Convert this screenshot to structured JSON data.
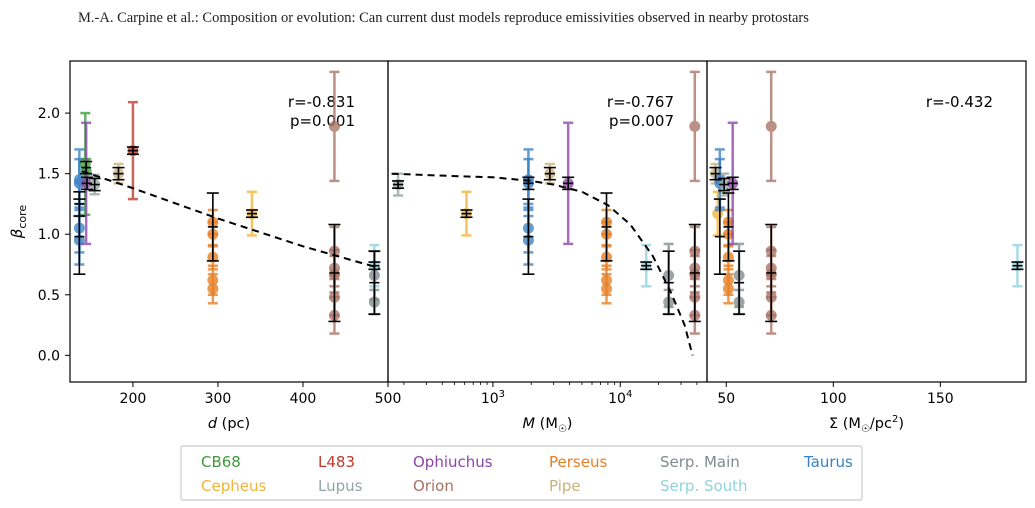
{
  "header": {
    "text": "M.-A. Carpine et al.: Composition or evolution: Can current dust models reproduce emissivities observed in nearby protostars"
  },
  "chart_data": {
    "type": "scatter",
    "ylabel": "β",
    "ylabel_sub": "core",
    "ylim": [
      -0.22,
      2.43
    ],
    "yticks": [
      0.0,
      0.5,
      1.0,
      1.5,
      2.0
    ],
    "legend": {
      "placement": "bottom-center",
      "entries": [
        {
          "name": "CB68",
          "color": "#3a9b3a"
        },
        {
          "name": "L483",
          "color": "#c0392b"
        },
        {
          "name": "Ophiuchus",
          "color": "#8e44ad"
        },
        {
          "name": "Perseus",
          "color": "#e67e22"
        },
        {
          "name": "Serp. Main",
          "color": "#7f8c8d"
        },
        {
          "name": "Taurus",
          "color": "#3b82c4"
        },
        {
          "name": "Cepheus",
          "color": "#f1b434"
        },
        {
          "name": "Lupus",
          "color": "#95a5a6"
        },
        {
          "name": "Orion",
          "color": "#a97164"
        },
        {
          "name": "Pipe",
          "color": "#c8b27a"
        },
        {
          "name": "Serp. South",
          "color": "#8fd3dd"
        }
      ]
    },
    "panels": [
      {
        "id": "distance",
        "xlabel_main": "d",
        "xlabel_unit": " (pc)",
        "xscale": "linear",
        "xlim": [
          126,
          500
        ],
        "xticks": [
          {
            "v": 200,
            "label": "200"
          },
          {
            "v": 300,
            "label": "300"
          },
          {
            "v": 400,
            "label": "400"
          },
          {
            "v": 500,
            "label": "500"
          }
        ],
        "r_label": "r=-0.831",
        "p_label": "p=0.001",
        "fit_curve": [
          [
            140,
            1.52
          ],
          [
            200,
            1.38
          ],
          [
            300,
            1.13
          ],
          [
            400,
            0.9
          ],
          [
            490,
            0.72
          ]
        ],
        "points": [
          {
            "x": 137,
            "y": 1.45,
            "lo": 0.25,
            "hi": 0.25,
            "color": "#3b82c4"
          },
          {
            "x": 137,
            "y": 1.42,
            "lo": 0.2,
            "hi": 0.2,
            "color": "#3b82c4"
          },
          {
            "x": 137,
            "y": 1.05,
            "lo": 0.2,
            "hi": 0.2,
            "color": "#3b82c4"
          },
          {
            "x": 137,
            "y": 0.95,
            "lo": 0.2,
            "hi": 0.2,
            "color": "#3b82c4"
          },
          {
            "x": 144,
            "y": 1.58,
            "lo": 0.42,
            "hi": 0.42,
            "color": "#3a9b3a"
          },
          {
            "x": 145,
            "y": 1.52,
            "lo": 0.1,
            "hi": 0.1,
            "color": "#3a9b3a"
          },
          {
            "x": 145,
            "y": 1.42,
            "lo": 0.5,
            "hi": 0.5,
            "color": "#8e44ad"
          },
          {
            "x": 155,
            "y": 1.41,
            "lo": 0.08,
            "hi": 0.08,
            "color": "#95a5a6"
          },
          {
            "x": 183,
            "y": 1.5,
            "lo": 0.08,
            "hi": 0.08,
            "color": "#c8b27a"
          },
          {
            "x": 200,
            "y": 1.69,
            "lo": 0.4,
            "hi": 0.4,
            "color": "#c0392b"
          },
          {
            "x": 294,
            "y": 1.1,
            "lo": 0.1,
            "hi": 0.1,
            "color": "#e67e22"
          },
          {
            "x": 294,
            "y": 1.0,
            "lo": 0.1,
            "hi": 0.1,
            "color": "#e67e22"
          },
          {
            "x": 294,
            "y": 0.81,
            "lo": 0.1,
            "hi": 0.1,
            "color": "#e67e22"
          },
          {
            "x": 294,
            "y": 0.62,
            "lo": 0.12,
            "hi": 0.12,
            "color": "#e67e22"
          },
          {
            "x": 294,
            "y": 0.55,
            "lo": 0.12,
            "hi": 0.12,
            "color": "#e67e22"
          },
          {
            "x": 340,
            "y": 1.17,
            "lo": 0.18,
            "hi": 0.18,
            "color": "#f1b434"
          },
          {
            "x": 437,
            "y": 1.89,
            "lo": 0.45,
            "hi": 0.45,
            "color": "#a97164"
          },
          {
            "x": 437,
            "y": 0.86,
            "lo": 0.2,
            "hi": 0.2,
            "color": "#a97164"
          },
          {
            "x": 437,
            "y": 0.72,
            "lo": 0.15,
            "hi": 0.15,
            "color": "#a97164"
          },
          {
            "x": 437,
            "y": 0.67,
            "lo": 0.15,
            "hi": 0.15,
            "color": "#a97164"
          },
          {
            "x": 437,
            "y": 0.48,
            "lo": 0.15,
            "hi": 0.15,
            "color": "#a97164"
          },
          {
            "x": 437,
            "y": 0.33,
            "lo": 0.15,
            "hi": 0.15,
            "color": "#a97164"
          },
          {
            "x": 484,
            "y": 0.74,
            "lo": 0.17,
            "hi": 0.17,
            "color": "#8fd3dd"
          },
          {
            "x": 484,
            "y": 0.66,
            "lo": 0.2,
            "hi": 0.2,
            "color": "#7f8c8d"
          },
          {
            "x": 484,
            "y": 0.44,
            "lo": 0.1,
            "hi": 0.1,
            "color": "#7f8c8d"
          }
        ],
        "means": [
          {
            "x": 137,
            "y": 0.98,
            "lo": 0.31,
            "hi": 0.31
          },
          {
            "x": 137,
            "y": 1.25,
            "lo": 0.1,
            "hi": 0.1
          },
          {
            "x": 145,
            "y": 1.55,
            "lo": 0.05,
            "hi": 0.05
          },
          {
            "x": 146,
            "y": 1.42,
            "lo": 0.05,
            "hi": 0.05
          },
          {
            "x": 155,
            "y": 1.41,
            "lo": 0.05,
            "hi": 0.05
          },
          {
            "x": 183,
            "y": 1.5,
            "lo": 0.05,
            "hi": 0.05
          },
          {
            "x": 200,
            "y": 1.69,
            "lo": 0.03,
            "hi": 0.03
          },
          {
            "x": 294,
            "y": 1.06,
            "lo": 0.28,
            "hi": 0.28
          },
          {
            "x": 340,
            "y": 1.17,
            "lo": 0.03,
            "hi": 0.03
          },
          {
            "x": 437,
            "y": 0.68,
            "lo": 0.4,
            "hi": 0.4
          },
          {
            "x": 484,
            "y": 0.74,
            "lo": 0.03,
            "hi": 0.03
          },
          {
            "x": 484,
            "y": 0.6,
            "lo": 0.26,
            "hi": 0.26
          }
        ]
      },
      {
        "id": "mass",
        "xlabel_main": "M",
        "xlabel_unit": " (M",
        "xlabel_tail": ")",
        "xscale": "log",
        "xlim": [
          150,
          48000
        ],
        "xticks": [
          {
            "v": 1000,
            "label": "10",
            "sup": "3"
          },
          {
            "v": 10000,
            "label": "10",
            "sup": "4"
          }
        ],
        "minor_ticks": [
          200,
          300,
          400,
          500,
          600,
          700,
          800,
          900,
          2000,
          3000,
          4000,
          5000,
          6000,
          7000,
          8000,
          9000,
          20000,
          30000,
          40000
        ],
        "r_label": "r=-0.767",
        "p_label": "p=0.007",
        "fit_curve": [
          [
            160,
            1.5
          ],
          [
            500,
            1.48
          ],
          [
            1000,
            1.47
          ],
          [
            2000,
            1.44
          ],
          [
            3000,
            1.41
          ],
          [
            5000,
            1.35
          ],
          [
            8000,
            1.24
          ],
          [
            12000,
            1.08
          ],
          [
            18000,
            0.82
          ],
          [
            25000,
            0.52
          ],
          [
            32000,
            0.25
          ],
          [
            37000,
            0.0
          ]
        ],
        "points": [
          {
            "x": 180,
            "y": 1.41,
            "lo": 0.09,
            "hi": 0.09,
            "color": "#95a5a6"
          },
          {
            "x": 620,
            "y": 1.17,
            "lo": 0.18,
            "hi": 0.18,
            "color": "#f1b434"
          },
          {
            "x": 1900,
            "y": 1.45,
            "lo": 0.25,
            "hi": 0.25,
            "color": "#3b82c4"
          },
          {
            "x": 1900,
            "y": 1.42,
            "lo": 0.2,
            "hi": 0.2,
            "color": "#3b82c4"
          },
          {
            "x": 1900,
            "y": 1.05,
            "lo": 0.2,
            "hi": 0.2,
            "color": "#3b82c4"
          },
          {
            "x": 1900,
            "y": 0.95,
            "lo": 0.2,
            "hi": 0.2,
            "color": "#3b82c4"
          },
          {
            "x": 2800,
            "y": 1.5,
            "lo": 0.08,
            "hi": 0.08,
            "color": "#c8b27a"
          },
          {
            "x": 3900,
            "y": 1.42,
            "lo": 0.5,
            "hi": 0.5,
            "color": "#8e44ad"
          },
          {
            "x": 7800,
            "y": 1.1,
            "lo": 0.1,
            "hi": 0.1,
            "color": "#e67e22"
          },
          {
            "x": 7800,
            "y": 1.0,
            "lo": 0.1,
            "hi": 0.1,
            "color": "#e67e22"
          },
          {
            "x": 7800,
            "y": 0.81,
            "lo": 0.1,
            "hi": 0.1,
            "color": "#e67e22"
          },
          {
            "x": 7800,
            "y": 0.62,
            "lo": 0.12,
            "hi": 0.12,
            "color": "#e67e22"
          },
          {
            "x": 7800,
            "y": 0.55,
            "lo": 0.12,
            "hi": 0.12,
            "color": "#e67e22"
          },
          {
            "x": 16000,
            "y": 0.74,
            "lo": 0.17,
            "hi": 0.17,
            "color": "#8fd3dd"
          },
          {
            "x": 24000,
            "y": 0.66,
            "lo": 0.26,
            "hi": 0.26,
            "color": "#7f8c8d"
          },
          {
            "x": 24000,
            "y": 0.44,
            "lo": 0.1,
            "hi": 0.1,
            "color": "#7f8c8d"
          },
          {
            "x": 38500,
            "y": 1.89,
            "lo": 0.45,
            "hi": 0.45,
            "color": "#a97164"
          },
          {
            "x": 38500,
            "y": 0.86,
            "lo": 0.2,
            "hi": 0.2,
            "color": "#a97164"
          },
          {
            "x": 38500,
            "y": 0.72,
            "lo": 0.15,
            "hi": 0.15,
            "color": "#a97164"
          },
          {
            "x": 38500,
            "y": 0.67,
            "lo": 0.15,
            "hi": 0.15,
            "color": "#a97164"
          },
          {
            "x": 38500,
            "y": 0.48,
            "lo": 0.15,
            "hi": 0.15,
            "color": "#a97164"
          },
          {
            "x": 38500,
            "y": 0.33,
            "lo": 0.15,
            "hi": 0.15,
            "color": "#a97164"
          }
        ],
        "means": [
          {
            "x": 180,
            "y": 1.41,
            "lo": 0.03,
            "hi": 0.03
          },
          {
            "x": 620,
            "y": 1.17,
            "lo": 0.03,
            "hi": 0.03
          },
          {
            "x": 1900,
            "y": 0.98,
            "lo": 0.31,
            "hi": 0.31
          },
          {
            "x": 1900,
            "y": 1.42,
            "lo": 0.05,
            "hi": 0.05
          },
          {
            "x": 2800,
            "y": 1.5,
            "lo": 0.05,
            "hi": 0.05
          },
          {
            "x": 3900,
            "y": 1.42,
            "lo": 0.05,
            "hi": 0.05
          },
          {
            "x": 7800,
            "y": 1.06,
            "lo": 0.28,
            "hi": 0.28
          },
          {
            "x": 16000,
            "y": 0.74,
            "lo": 0.03,
            "hi": 0.03
          },
          {
            "x": 24000,
            "y": 0.6,
            "lo": 0.26,
            "hi": 0.26
          },
          {
            "x": 38500,
            "y": 0.68,
            "lo": 0.4,
            "hi": 0.4
          }
        ]
      },
      {
        "id": "surface-density",
        "xlabel_main": "Σ (M",
        "xlabel_unit": "/pc",
        "xlabel_sup": "2",
        "xlabel_tail": ")",
        "xscale": "linear",
        "xlim": [
          41,
          190
        ],
        "xticks": [
          {
            "v": 50,
            "label": "50"
          },
          {
            "v": 100,
            "label": "100"
          },
          {
            "v": 150,
            "label": "150"
          }
        ],
        "r_label": "r=-0.432",
        "p_label": "",
        "fit_curve": [],
        "points": [
          {
            "x": 45,
            "y": 1.5,
            "lo": 0.08,
            "hi": 0.08,
            "color": "#c8b27a"
          },
          {
            "x": 46,
            "y": 1.17,
            "lo": 0.18,
            "hi": 0.18,
            "color": "#f1b434"
          },
          {
            "x": 47,
            "y": 1.45,
            "lo": 0.25,
            "hi": 0.25,
            "color": "#3b82c4"
          },
          {
            "x": 47,
            "y": 1.42,
            "lo": 0.2,
            "hi": 0.2,
            "color": "#3b82c4"
          },
          {
            "x": 49,
            "y": 1.41,
            "lo": 0.09,
            "hi": 0.09,
            "color": "#95a5a6"
          },
          {
            "x": 51,
            "y": 1.1,
            "lo": 0.1,
            "hi": 0.1,
            "color": "#e67e22"
          },
          {
            "x": 51,
            "y": 1.0,
            "lo": 0.1,
            "hi": 0.1,
            "color": "#e67e22"
          },
          {
            "x": 51,
            "y": 0.81,
            "lo": 0.1,
            "hi": 0.1,
            "color": "#e67e22"
          },
          {
            "x": 51,
            "y": 0.62,
            "lo": 0.12,
            "hi": 0.12,
            "color": "#e67e22"
          },
          {
            "x": 51,
            "y": 0.55,
            "lo": 0.12,
            "hi": 0.12,
            "color": "#e67e22"
          },
          {
            "x": 53,
            "y": 1.42,
            "lo": 0.5,
            "hi": 0.5,
            "color": "#8e44ad"
          },
          {
            "x": 56,
            "y": 0.66,
            "lo": 0.26,
            "hi": 0.26,
            "color": "#7f8c8d"
          },
          {
            "x": 56,
            "y": 0.44,
            "lo": 0.1,
            "hi": 0.1,
            "color": "#7f8c8d"
          },
          {
            "x": 71,
            "y": 1.89,
            "lo": 0.45,
            "hi": 0.45,
            "color": "#a97164"
          },
          {
            "x": 71,
            "y": 0.86,
            "lo": 0.2,
            "hi": 0.2,
            "color": "#a97164"
          },
          {
            "x": 71,
            "y": 0.72,
            "lo": 0.15,
            "hi": 0.15,
            "color": "#a97164"
          },
          {
            "x": 71,
            "y": 0.67,
            "lo": 0.15,
            "hi": 0.15,
            "color": "#a97164"
          },
          {
            "x": 71,
            "y": 0.48,
            "lo": 0.15,
            "hi": 0.15,
            "color": "#a97164"
          },
          {
            "x": 71,
            "y": 0.33,
            "lo": 0.15,
            "hi": 0.15,
            "color": "#a97164"
          },
          {
            "x": 186,
            "y": 0.74,
            "lo": 0.17,
            "hi": 0.17,
            "color": "#8fd3dd"
          }
        ],
        "means": [
          {
            "x": 45,
            "y": 1.5,
            "lo": 0.05,
            "hi": 0.05
          },
          {
            "x": 47,
            "y": 0.98,
            "lo": 0.31,
            "hi": 0.31
          },
          {
            "x": 49,
            "y": 1.41,
            "lo": 0.05,
            "hi": 0.05
          },
          {
            "x": 51,
            "y": 1.06,
            "lo": 0.28,
            "hi": 0.28
          },
          {
            "x": 53,
            "y": 1.42,
            "lo": 0.05,
            "hi": 0.05
          },
          {
            "x": 56,
            "y": 0.6,
            "lo": 0.26,
            "hi": 0.26
          },
          {
            "x": 71,
            "y": 0.68,
            "lo": 0.4,
            "hi": 0.4
          },
          {
            "x": 186,
            "y": 0.74,
            "lo": 0.03,
            "hi": 0.03
          }
        ]
      }
    ]
  }
}
